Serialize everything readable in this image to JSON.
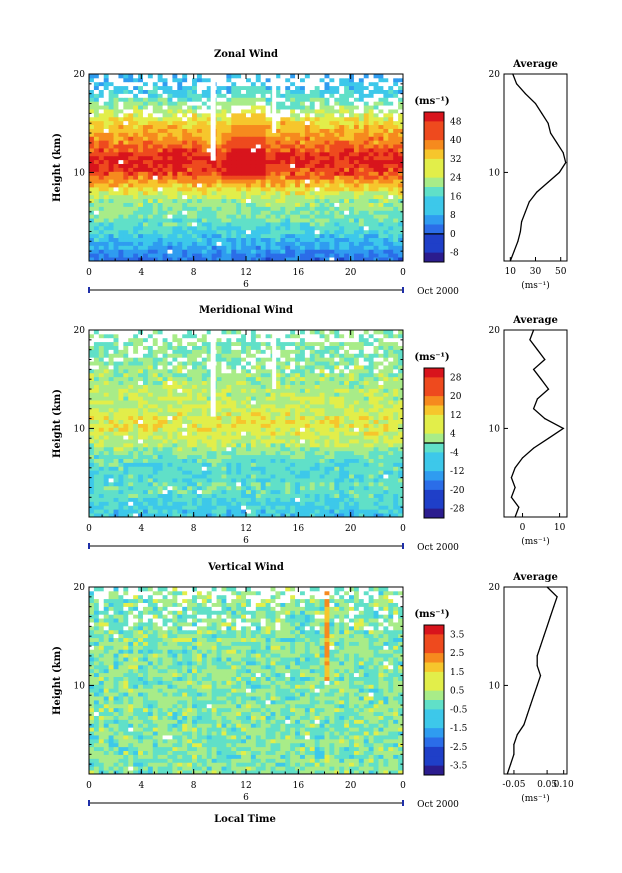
{
  "figure": {
    "xlabel": "Local Time"
  },
  "chart_data": [
    {
      "type": "heatmap",
      "title": "Zonal Wind",
      "ylabel": "Height (km)",
      "xlim": [
        0,
        24
      ],
      "ylim": [
        1,
        20
      ],
      "x_ticks": [
        "0",
        "4",
        "8",
        "12",
        "16",
        "20",
        "0"
      ],
      "y_ticks": [
        "20",
        "10"
      ],
      "date_marker": "6",
      "date_label": "Oct 2000",
      "colorbar": {
        "unit": "(ms⁻¹)",
        "ticks": [
          "48",
          "40",
          "32",
          "24",
          "16",
          "8",
          "0",
          "-8"
        ],
        "range": [
          -12,
          52
        ],
        "zero_line": 0
      },
      "profile": {
        "title": "Average",
        "x_ticks": [
          "10",
          "30",
          "50"
        ],
        "xlabel": "(ms⁻¹)",
        "xlim": [
          5,
          55
        ],
        "y_ticks": [
          "20",
          "10"
        ],
        "heights": [
          1,
          2,
          3,
          4,
          5,
          6,
          7,
          8,
          9,
          10,
          11,
          12,
          13,
          14,
          15,
          16,
          17,
          18,
          19,
          20
        ],
        "values": [
          10,
          13,
          16,
          18,
          19,
          22,
          25,
          31,
          40,
          49,
          54,
          52,
          47,
          42,
          40,
          35,
          30,
          22,
          15,
          12
        ]
      },
      "field_profile": [
        0,
        1,
        2,
        3,
        4,
        5,
        6,
        7,
        8,
        9,
        10,
        11,
        12,
        13,
        14,
        15,
        16,
        17,
        18,
        19,
        20
      ],
      "field_values": [
        -4,
        2,
        6,
        10,
        14,
        18,
        20,
        22,
        28,
        36,
        44,
        48,
        46,
        40,
        36,
        32,
        26,
        20,
        14,
        10,
        10
      ]
    },
    {
      "type": "heatmap",
      "title": "Meridional Wind",
      "ylabel": "Height (km)",
      "xlim": [
        0,
        24
      ],
      "ylim": [
        1,
        20
      ],
      "x_ticks": [
        "0",
        "4",
        "8",
        "12",
        "16",
        "20",
        "0"
      ],
      "y_ticks": [
        "20",
        "10"
      ],
      "date_marker": "6",
      "date_label": "Oct 2000",
      "colorbar": {
        "unit": "(ms⁻¹)",
        "ticks": [
          "28",
          "20",
          "12",
          "4",
          "-4",
          "-12",
          "-20",
          "-28"
        ],
        "range": [
          -32,
          32
        ],
        "zero_line": 0
      },
      "profile": {
        "title": "Average",
        "x_ticks": [
          "0",
          "10"
        ],
        "xlabel": "(ms⁻¹)",
        "xlim": [
          -5,
          12
        ],
        "y_ticks": [
          "20",
          "10"
        ],
        "heights": [
          1,
          2,
          3,
          4,
          5,
          6,
          7,
          8,
          9,
          10,
          11,
          12,
          13,
          14,
          15,
          16,
          17,
          18,
          19,
          20
        ],
        "values": [
          -2,
          -1,
          -3,
          -2,
          -3,
          -2,
          0,
          3,
          7,
          11,
          6,
          3,
          4,
          7,
          5,
          3,
          6,
          4,
          2,
          3
        ]
      },
      "field_profile": [
        0,
        1,
        2,
        3,
        4,
        5,
        6,
        7,
        8,
        9,
        10,
        11,
        12,
        13,
        14,
        15,
        16,
        17,
        18,
        19,
        20
      ],
      "field_values": [
        -8,
        -8,
        -6,
        -4,
        -2,
        -4,
        -4,
        -2,
        2,
        6,
        8,
        8,
        6,
        4,
        4,
        2,
        2,
        0,
        0,
        0,
        0
      ]
    },
    {
      "type": "heatmap",
      "title": "Vertical Wind",
      "ylabel": "Height (km)",
      "xlim": [
        0,
        24
      ],
      "ylim": [
        1,
        20
      ],
      "x_ticks": [
        "0",
        "4",
        "8",
        "12",
        "16",
        "20",
        "0"
      ],
      "y_ticks": [
        "20",
        "10"
      ],
      "date_marker": "6",
      "date_label": "Oct 2000",
      "colorbar": {
        "unit": "(ms⁻¹)",
        "ticks": [
          "3.5",
          "2.5",
          "1.5",
          "0.5",
          "-0.5",
          "-1.5",
          "-2.5",
          "-3.5"
        ],
        "range": [
          -4,
          4
        ]
      },
      "profile": {
        "title": "Average",
        "x_ticks": [
          "-0.05",
          "0.05",
          "0.10"
        ],
        "xlabel": "(ms⁻¹)",
        "xlim": [
          -0.08,
          0.11
        ],
        "y_ticks": [
          "20",
          "10"
        ],
        "heights": [
          1,
          2,
          3,
          4,
          5,
          6,
          7,
          8,
          9,
          10,
          11,
          12,
          13,
          14,
          15,
          16,
          17,
          18,
          19,
          20
        ],
        "values": [
          -0.07,
          -0.06,
          -0.05,
          -0.05,
          -0.04,
          -0.02,
          -0.01,
          0.0,
          0.01,
          0.02,
          0.03,
          0.02,
          0.02,
          0.03,
          0.04,
          0.05,
          0.06,
          0.07,
          0.08,
          0.05
        ]
      },
      "field_profile": [
        0,
        1,
        2,
        3,
        4,
        5,
        6,
        7,
        8,
        9,
        10,
        11,
        12,
        13,
        14,
        15,
        16,
        17,
        18,
        19,
        20
      ],
      "field_values": [
        0,
        0,
        0,
        0,
        0,
        0,
        0,
        0,
        0,
        0,
        0,
        0,
        0,
        0,
        0,
        0,
        0,
        0,
        0,
        0,
        0
      ]
    }
  ]
}
